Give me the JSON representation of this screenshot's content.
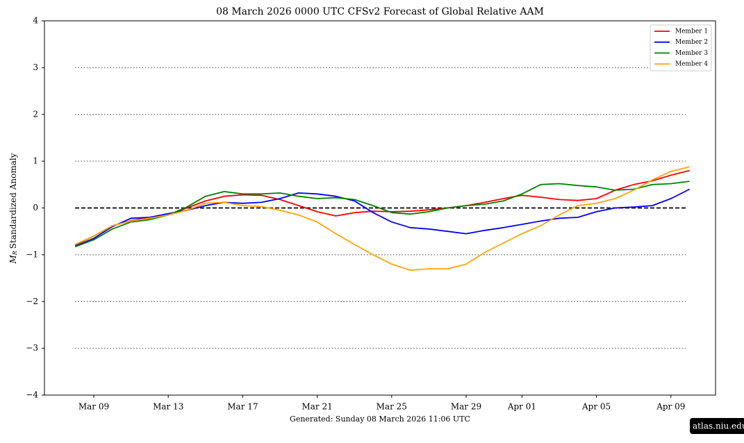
{
  "chart_data": {
    "type": "line",
    "title": "08  March  2026 0000 UTC   CFSv2 Forecast of Global Relative AAM",
    "ylabel_symbol": "M",
    "ylabel_subscript": "R",
    "ylabel": "Standardized Anomaly",
    "footer": "Generated: Sunday  08  March  2026  11:06 UTC",
    "badge": "atlas.niu.edu",
    "legend": "upper right",
    "x": [
      null,
      null,
      null,
      "Mar 09",
      null,
      null,
      null,
      "Mar 13",
      null,
      null,
      null,
      "Mar 17",
      null,
      null,
      null,
      "Mar 21",
      null,
      null,
      null,
      "Mar 25",
      null,
      null,
      null,
      "Mar 29",
      null,
      null,
      "Apr 01",
      null,
      null,
      null,
      "Apr 05",
      null,
      null,
      null,
      "Apr 09",
      null,
      null
    ],
    "ylim": [
      -4,
      4
    ],
    "yticks": [
      {
        "value": -4,
        "label": "−4"
      },
      {
        "value": -3,
        "label": "−3"
      },
      {
        "value": -2,
        "label": "−2"
      },
      {
        "value": -1,
        "label": "−1"
      },
      0,
      1,
      2,
      3,
      4
    ],
    "reference_lines": {
      "dotted": [
        -3,
        -2,
        -1,
        1,
        2,
        3
      ],
      "dashed": [
        0
      ]
    },
    "series": [
      {
        "name": "Member 1",
        "color": "#ff0000",
        "values": [
          null,
          null,
          -0.8,
          -0.6,
          -0.38,
          -0.27,
          -0.2,
          -0.15,
          0.0,
          0.15,
          0.25,
          0.28,
          0.27,
          0.18,
          0.05,
          -0.08,
          -0.17,
          -0.1,
          -0.07,
          -0.08,
          -0.07,
          -0.04,
          0.0,
          0.05,
          0.12,
          0.2,
          0.27,
          0.23,
          0.18,
          0.16,
          0.2,
          0.38,
          0.5,
          0.58,
          0.7,
          0.8,
          null
        ]
      },
      {
        "name": "Member 2",
        "color": "#0000ff",
        "values": [
          null,
          null,
          -0.82,
          -0.65,
          -0.4,
          -0.22,
          -0.2,
          -0.12,
          -0.05,
          0.05,
          0.12,
          0.1,
          0.12,
          0.2,
          0.32,
          0.3,
          0.25,
          0.15,
          -0.1,
          -0.3,
          -0.42,
          -0.45,
          -0.5,
          -0.55,
          -0.48,
          -0.42,
          -0.35,
          -0.28,
          -0.22,
          -0.2,
          -0.08,
          0.0,
          0.02,
          0.05,
          0.2,
          0.4,
          null
        ]
      },
      {
        "name": "Member 3",
        "color": "#008000",
        "values": [
          null,
          null,
          -0.83,
          -0.68,
          -0.45,
          -0.3,
          -0.25,
          -0.15,
          0.02,
          0.25,
          0.35,
          0.3,
          0.3,
          0.32,
          0.25,
          0.2,
          0.22,
          0.18,
          0.05,
          -0.1,
          -0.13,
          -0.08,
          0.0,
          0.05,
          0.08,
          0.15,
          0.3,
          0.5,
          0.52,
          0.48,
          0.45,
          0.38,
          0.4,
          0.5,
          0.52,
          0.57,
          null
        ]
      },
      {
        "name": "Member 4",
        "color": "#ffa500",
        "values": [
          null,
          null,
          -0.78,
          -0.6,
          -0.38,
          -0.28,
          -0.22,
          -0.15,
          -0.05,
          0.1,
          0.12,
          0.05,
          0.03,
          -0.05,
          -0.15,
          -0.3,
          -0.55,
          -0.78,
          -1.0,
          -1.2,
          -1.33,
          -1.3,
          -1.3,
          -1.2,
          -0.95,
          -0.75,
          -0.55,
          -0.38,
          -0.15,
          0.05,
          0.1,
          0.2,
          0.38,
          0.6,
          0.78,
          0.88,
          null
        ]
      }
    ]
  }
}
